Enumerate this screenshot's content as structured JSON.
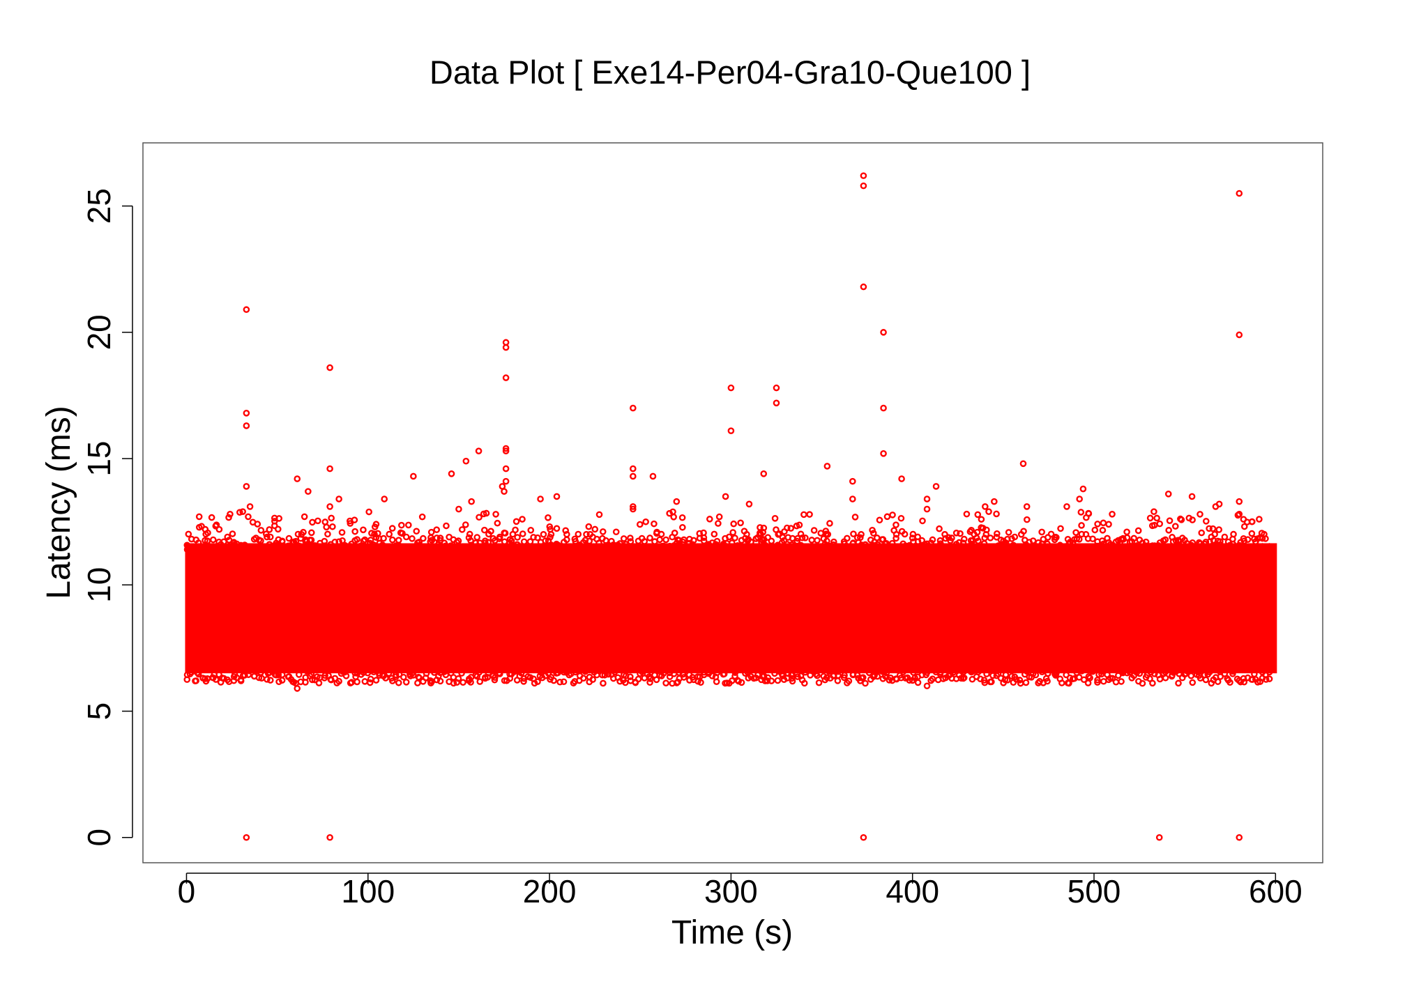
{
  "chart_data": {
    "type": "scatter",
    "title": "Data Plot [ Exe14-Per04-Gra10-Que100 ]",
    "xlabel": "Time (s)",
    "ylabel": "Latency (ms)",
    "xlim": [
      -24,
      626
    ],
    "ylim": [
      -1,
      27.5
    ],
    "x_ticks": [
      0,
      100,
      200,
      300,
      400,
      500,
      600
    ],
    "y_ticks": [
      0,
      5,
      10,
      15,
      20,
      25
    ],
    "grid": false,
    "legend": "none",
    "marker": "open-circle",
    "series": [
      {
        "color": "#ff0000",
        "band": {
          "x_range": [
            0,
            600
          ],
          "y_range": [
            6.1,
            11.9
          ],
          "typical_y": 9
        },
        "outliers": [
          {
            "x": 33,
            "y": 20.9
          },
          {
            "x": 33,
            "y": 16.8
          },
          {
            "x": 33,
            "y": 16.3
          },
          {
            "x": 33,
            "y": 13.9
          },
          {
            "x": 35,
            "y": 13.1
          },
          {
            "x": 34,
            "y": 12.7
          },
          {
            "x": 31,
            "y": 12.9
          },
          {
            "x": 33,
            "y": 0
          },
          {
            "x": 79,
            "y": 0
          },
          {
            "x": 79,
            "y": 18.6
          },
          {
            "x": 79,
            "y": 14.6
          },
          {
            "x": 79,
            "y": 13.1
          },
          {
            "x": 61,
            "y": 14.2
          },
          {
            "x": 67,
            "y": 13.7
          },
          {
            "x": 65,
            "y": 12.7
          },
          {
            "x": 84,
            "y": 13.4
          },
          {
            "x": 109,
            "y": 13.4
          },
          {
            "x": 125,
            "y": 14.3
          },
          {
            "x": 146,
            "y": 14.4
          },
          {
            "x": 154,
            "y": 14.9
          },
          {
            "x": 161,
            "y": 15.3
          },
          {
            "x": 157,
            "y": 13.3
          },
          {
            "x": 150,
            "y": 13.0
          },
          {
            "x": 176,
            "y": 19.6
          },
          {
            "x": 176,
            "y": 19.4
          },
          {
            "x": 176,
            "y": 18.2
          },
          {
            "x": 176,
            "y": 15.4
          },
          {
            "x": 176,
            "y": 15.3
          },
          {
            "x": 176,
            "y": 14.6
          },
          {
            "x": 176,
            "y": 14.1
          },
          {
            "x": 174,
            "y": 13.9
          },
          {
            "x": 175,
            "y": 13.7
          },
          {
            "x": 185,
            "y": 12.6
          },
          {
            "x": 195,
            "y": 13.4
          },
          {
            "x": 204,
            "y": 13.5
          },
          {
            "x": 246,
            "y": 17.0
          },
          {
            "x": 246,
            "y": 14.6
          },
          {
            "x": 246,
            "y": 14.3
          },
          {
            "x": 246,
            "y": 13.1
          },
          {
            "x": 246,
            "y": 13.0
          },
          {
            "x": 257,
            "y": 14.3
          },
          {
            "x": 270,
            "y": 13.3
          },
          {
            "x": 297,
            "y": 13.5
          },
          {
            "x": 300,
            "y": 17.8
          },
          {
            "x": 300,
            "y": 16.1
          },
          {
            "x": 310,
            "y": 13.2
          },
          {
            "x": 318,
            "y": 14.4
          },
          {
            "x": 325,
            "y": 17.8
          },
          {
            "x": 325,
            "y": 17.2
          },
          {
            "x": 353,
            "y": 14.7
          },
          {
            "x": 367,
            "y": 14.1
          },
          {
            "x": 367,
            "y": 13.4
          },
          {
            "x": 373,
            "y": 26.2
          },
          {
            "x": 373,
            "y": 25.8
          },
          {
            "x": 373,
            "y": 21.8
          },
          {
            "x": 373,
            "y": 0
          },
          {
            "x": 384,
            "y": 20.0
          },
          {
            "x": 384,
            "y": 17.0
          },
          {
            "x": 384,
            "y": 15.2
          },
          {
            "x": 394,
            "y": 14.2
          },
          {
            "x": 408,
            "y": 13.4
          },
          {
            "x": 408,
            "y": 13.0
          },
          {
            "x": 413,
            "y": 13.9
          },
          {
            "x": 440,
            "y": 13.1
          },
          {
            "x": 442,
            "y": 12.9
          },
          {
            "x": 445,
            "y": 13.3
          },
          {
            "x": 461,
            "y": 14.8
          },
          {
            "x": 463,
            "y": 13.1
          },
          {
            "x": 485,
            "y": 13.1
          },
          {
            "x": 492,
            "y": 13.4
          },
          {
            "x": 494,
            "y": 13.8
          },
          {
            "x": 510,
            "y": 12.8
          },
          {
            "x": 536,
            "y": 0
          },
          {
            "x": 533,
            "y": 12.9
          },
          {
            "x": 541,
            "y": 13.6
          },
          {
            "x": 554,
            "y": 13.5
          },
          {
            "x": 567,
            "y": 13.1
          },
          {
            "x": 569,
            "y": 13.2
          },
          {
            "x": 580,
            "y": 25.5
          },
          {
            "x": 580,
            "y": 19.9
          },
          {
            "x": 580,
            "y": 13.3
          },
          {
            "x": 580,
            "y": 12.8
          },
          {
            "x": 580,
            "y": 0
          },
          {
            "x": 587,
            "y": 12.5
          },
          {
            "x": 591,
            "y": 12.6
          },
          {
            "x": 24,
            "y": 12.8
          },
          {
            "x": 7,
            "y": 12.7
          },
          {
            "x": 61,
            "y": 5.9
          },
          {
            "x": 408,
            "y": 6.0
          }
        ]
      }
    ]
  }
}
